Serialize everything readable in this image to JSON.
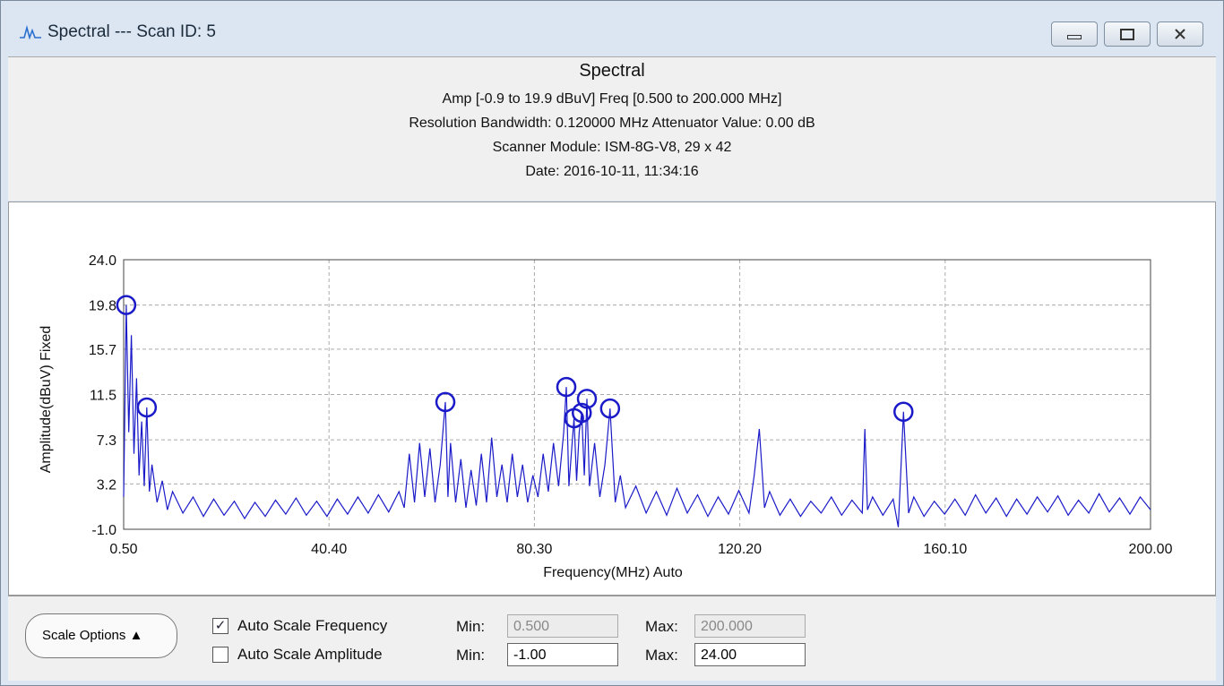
{
  "window": {
    "title": "Spectral --- Scan ID: 5"
  },
  "header": {
    "title": "Spectral",
    "lines": [
      "Amp [-0.9  to 19.9  dBuV]    Freq [0.500    to 200.000  MHz]",
      "Resolution Bandwidth: 0.120000 MHz    Attenuator Value:  0.00 dB",
      "Scanner Module: ISM-8G-V8,  29 x 42",
      "Date: 2016-10-11,  11:34:16"
    ]
  },
  "chart_data": {
    "type": "line",
    "x_label": "Frequency(MHz)  Auto",
    "y_label": "Amplitude(dBuV)  Fixed",
    "color": "#1a1ac8",
    "grid": true,
    "xlim": [
      0.5,
      200
    ],
    "ylim": [
      -1,
      24
    ],
    "xticks": [
      {
        "value": 0.5,
        "label": "0.50"
      },
      {
        "value": 40.4,
        "label": "40.40"
      },
      {
        "value": 80.3,
        "label": "80.30"
      },
      {
        "value": 120.2,
        "label": "120.20"
      },
      {
        "value": 160.1,
        "label": "160.10"
      },
      {
        "value": 200,
        "label": "200.00"
      }
    ],
    "yticks": [
      {
        "value": 24,
        "label": "24.0"
      },
      19.8,
      15.7,
      11.5,
      7.3,
      3.2,
      {
        "value": -1,
        "label": "-1.0"
      }
    ],
    "x": [
      0.5,
      1,
      1.5,
      2,
      2.5,
      3,
      3.5,
      4,
      4.5,
      5,
      5.5,
      6,
      7,
      8,
      9,
      10,
      12,
      14,
      16,
      18,
      20,
      22,
      24,
      26,
      28,
      30,
      32,
      34,
      36,
      38,
      40,
      42,
      44,
      46,
      48,
      50,
      52,
      54,
      55,
      56,
      57,
      58,
      59,
      60,
      61,
      62,
      63,
      63.5,
      64,
      65,
      66,
      67,
      68,
      69,
      70,
      71,
      72,
      73,
      74,
      75,
      76,
      77,
      78,
      79,
      80,
      81,
      82,
      83,
      84,
      85,
      86,
      86.5,
      87,
      88,
      88.5,
      89,
      89.5,
      90,
      90.5,
      91,
      92,
      93,
      94,
      95,
      96,
      97,
      98,
      100,
      102,
      104,
      106,
      108,
      110,
      112,
      114,
      116,
      118,
      120,
      122,
      123,
      124,
      125,
      126,
      128,
      130,
      132,
      134,
      136,
      138,
      140,
      142,
      144,
      144.5,
      145,
      146,
      148,
      150,
      151,
      152,
      153,
      154,
      156,
      158,
      160,
      162,
      164,
      166,
      168,
      170,
      172,
      174,
      176,
      178,
      180,
      182,
      184,
      186,
      188,
      190,
      192,
      194,
      196,
      198,
      200
    ],
    "values": [
      2,
      19.8,
      8,
      17,
      6,
      13,
      4,
      9,
      3,
      10.3,
      2.5,
      5,
      1.5,
      3.5,
      0.8,
      2.5,
      0.5,
      2,
      0.2,
      1.8,
      0.3,
      1.6,
      0,
      1.5,
      0.2,
      1.7,
      0.4,
      1.9,
      0.3,
      1.6,
      0.2,
      1.8,
      0.4,
      2,
      0.5,
      2.2,
      0.6,
      2.5,
      1,
      6,
      1.5,
      7,
      2,
      6.5,
      1.5,
      5,
      10.8,
      2,
      7,
      1.5,
      5.5,
      1,
      4.5,
      1.2,
      6,
      1.5,
      7.5,
      2,
      5,
      1.5,
      6,
      2,
      5,
      1.5,
      4,
      2,
      6,
      2.5,
      7,
      3,
      8,
      12.2,
      3,
      9.3,
      3.5,
      8,
      9.8,
      4,
      11.1,
      3,
      7,
      2,
      5,
      10.2,
      1.5,
      4,
      1,
      3,
      0.5,
      2.5,
      0.3,
      2.8,
      0.5,
      2.2,
      0.2,
      2,
      0.4,
      2.6,
      0.5,
      4,
      8.3,
      1,
      2.5,
      0.3,
      1.8,
      0.2,
      1.6,
      0.5,
      2,
      0.3,
      1.7,
      0.5,
      8.3,
      0.8,
      2,
      0.3,
      1.8,
      -0.8,
      9.9,
      0.5,
      2,
      0.2,
      1.6,
      0.4,
      1.8,
      0.3,
      2.2,
      0.5,
      1.9,
      0.2,
      1.8,
      0.4,
      2,
      0.6,
      2.1,
      0.3,
      1.7,
      0.5,
      2.3,
      0.6,
      1.9,
      0.4,
      2,
      0.8
    ],
    "markers": {
      "x": [
        1,
        5,
        63,
        86.5,
        88,
        89.5,
        90.5,
        95,
        152
      ],
      "values": [
        19.8,
        10.3,
        10.8,
        12.2,
        9.3,
        9.8,
        11.1,
        10.2,
        9.9
      ]
    }
  },
  "controls": {
    "scale_button": "Scale Options",
    "auto_freq": {
      "label": "Auto Scale Frequency",
      "checked": true
    },
    "auto_amp": {
      "label": "Auto Scale Amplitude",
      "checked": false
    },
    "freq_min_label": "Min:",
    "freq_min": "0.500",
    "freq_max_label": "Max:",
    "freq_max": "200.000",
    "amp_min_label": "Min:",
    "amp_min": "-1.00",
    "amp_max_label": "Max:",
    "amp_max": "24.00"
  }
}
